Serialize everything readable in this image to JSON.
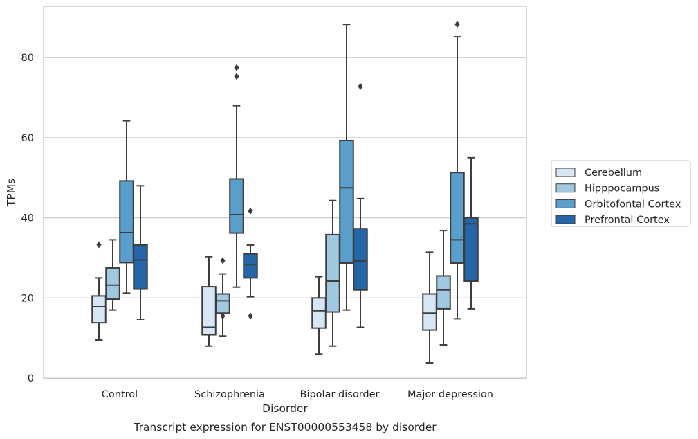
{
  "chart_data": {
    "type": "box",
    "xlabel": "Disorder",
    "ylabel": "TPMs",
    "caption": "Transcript expression for ENST00000553458 by disorder",
    "ylim": [
      0,
      93
    ],
    "yticks": [
      0,
      20,
      40,
      60,
      80
    ],
    "grid": "horizontal",
    "legend_placement": "right",
    "categories": [
      "Control",
      "Schizophrenia",
      "Bipolar disorder",
      "Major depression"
    ],
    "series": [
      {
        "name": "Cerebellum",
        "color": "#d6e6f4",
        "boxes": [
          {
            "whisker_low": 9.5,
            "q1": 13.8,
            "median": 17.8,
            "q3": 20.5,
            "whisker_high": 25.0,
            "outliers": [
              33.3
            ]
          },
          {
            "whisker_low": 8.0,
            "q1": 10.8,
            "median": 12.7,
            "q3": 22.8,
            "whisker_high": 30.3,
            "outliers": []
          },
          {
            "whisker_low": 6.0,
            "q1": 12.5,
            "median": 16.8,
            "q3": 20.0,
            "whisker_high": 25.3,
            "outliers": []
          },
          {
            "whisker_low": 3.8,
            "q1": 12.0,
            "median": 16.2,
            "q3": 21.0,
            "whisker_high": 31.4,
            "outliers": []
          }
        ]
      },
      {
        "name": "Hipppocampus",
        "color": "#a0c8e0",
        "boxes": [
          {
            "whisker_low": 17.0,
            "q1": 19.7,
            "median": 23.2,
            "q3": 27.5,
            "whisker_high": 34.5,
            "outliers": []
          },
          {
            "whisker_low": 10.5,
            "q1": 16.2,
            "median": 19.3,
            "q3": 21.0,
            "whisker_high": 26.0,
            "outliers": [
              29.3,
              15.5
            ]
          },
          {
            "whisker_low": 8.0,
            "q1": 16.5,
            "median": 24.2,
            "q3": 35.8,
            "whisker_high": 44.3,
            "outliers": []
          },
          {
            "whisker_low": 8.3,
            "q1": 17.3,
            "median": 22.0,
            "q3": 25.5,
            "whisker_high": 36.8,
            "outliers": []
          }
        ]
      },
      {
        "name": "Orbitofontal Cortex",
        "color": "#5a9fcb",
        "boxes": [
          {
            "whisker_low": 21.2,
            "q1": 28.8,
            "median": 36.3,
            "q3": 49.2,
            "whisker_high": 64.2,
            "outliers": []
          },
          {
            "whisker_low": 22.7,
            "q1": 36.2,
            "median": 40.8,
            "q3": 49.7,
            "whisker_high": 68.0,
            "outliers": [
              75.3,
              77.5
            ]
          },
          {
            "whisker_low": 17.0,
            "q1": 28.7,
            "median": 47.5,
            "q3": 59.3,
            "whisker_high": 88.3,
            "outliers": []
          },
          {
            "whisker_low": 14.8,
            "q1": 28.7,
            "median": 34.5,
            "q3": 51.3,
            "whisker_high": 85.2,
            "outliers": [
              88.3
            ]
          }
        ]
      },
      {
        "name": "Prefrontal Cortex",
        "color": "#2566a8",
        "boxes": [
          {
            "whisker_low": 14.7,
            "q1": 22.2,
            "median": 29.5,
            "q3": 33.2,
            "whisker_high": 48.0,
            "outliers": []
          },
          {
            "whisker_low": 20.3,
            "q1": 25.0,
            "median": 28.3,
            "q3": 31.0,
            "whisker_high": 33.2,
            "outliers": [
              41.7,
              15.5
            ]
          },
          {
            "whisker_low": 12.7,
            "q1": 22.0,
            "median": 29.2,
            "q3": 37.3,
            "whisker_high": 44.8,
            "outliers": [
              72.8
            ]
          },
          {
            "whisker_low": 17.3,
            "q1": 24.2,
            "median": 38.5,
            "q3": 40.0,
            "whisker_high": 55.0,
            "outliers": []
          }
        ]
      }
    ]
  }
}
